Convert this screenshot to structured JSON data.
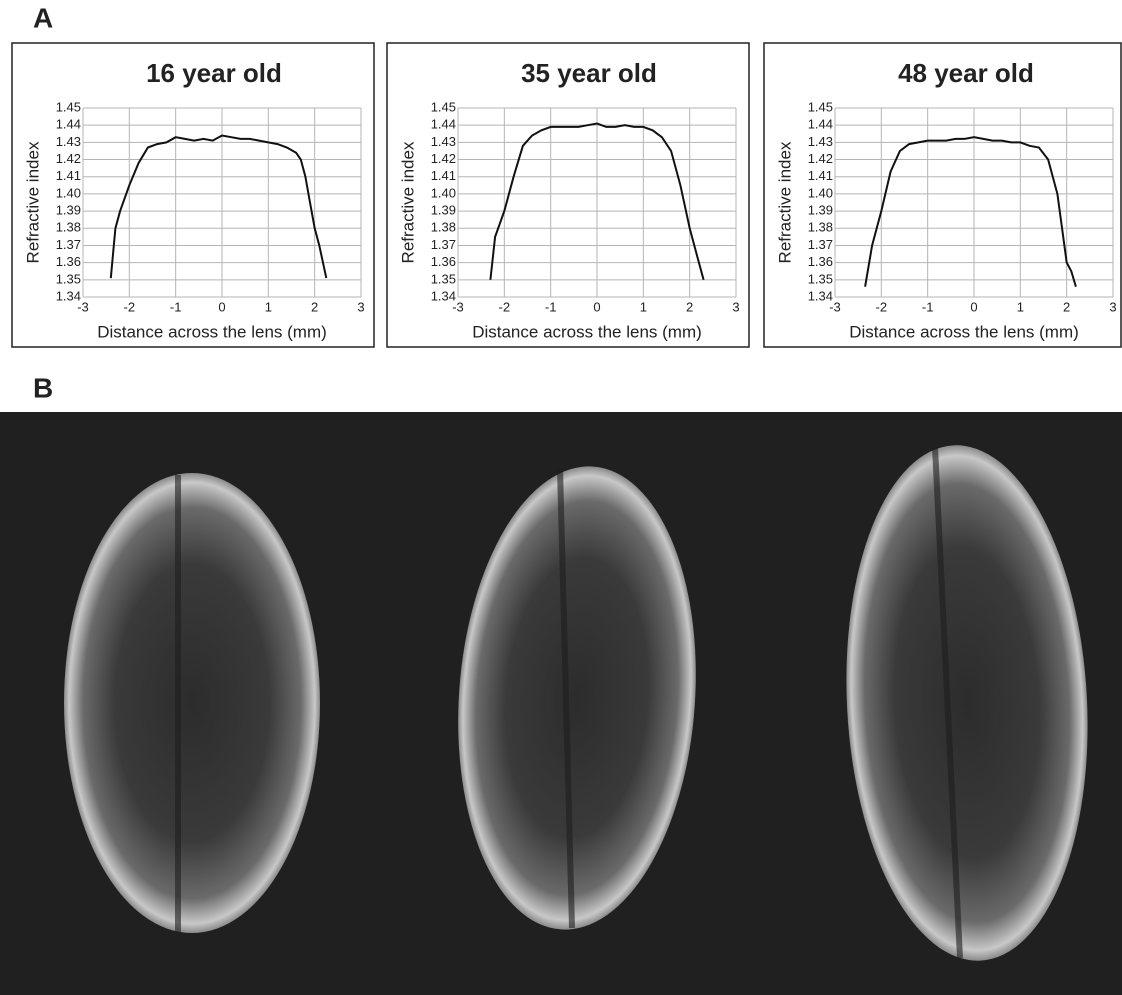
{
  "panel_labels": [
    "A",
    "B"
  ],
  "chart_data": [
    {
      "type": "line",
      "title": "16 year old",
      "x_label": "Distance across the lens (mm)",
      "y_label": "Refractive index",
      "x": [
        -2.4,
        -2.3,
        -2.2,
        -2.0,
        -1.8,
        -1.6,
        -1.4,
        -1.2,
        -1.0,
        -0.8,
        -0.6,
        -0.4,
        -0.2,
        0,
        0.2,
        0.4,
        0.6,
        0.8,
        1.0,
        1.2,
        1.4,
        1.6,
        1.7,
        1.8,
        1.9,
        2.0,
        2.1,
        2.25
      ],
      "values": [
        1.351,
        1.38,
        1.39,
        1.405,
        1.418,
        1.427,
        1.429,
        1.43,
        1.433,
        1.432,
        1.431,
        1.432,
        1.431,
        1.434,
        1.433,
        1.432,
        1.432,
        1.431,
        1.43,
        1.429,
        1.427,
        1.424,
        1.42,
        1.41,
        1.395,
        1.38,
        1.37,
        1.351
      ],
      "color": "#111111",
      "xlim": [
        -3,
        3
      ],
      "ylim": [
        1.34,
        1.45
      ],
      "xticks": [
        -3,
        -2,
        -1,
        0,
        1,
        2,
        3
      ],
      "yticks": [
        1.34,
        1.35,
        1.36,
        1.37,
        1.38,
        1.39,
        {
          "value": 1.4,
          "label": "1.40"
        },
        1.41,
        1.42,
        1.43,
        1.44,
        1.45
      ],
      "grid": true
    },
    {
      "type": "line",
      "title": "35 year old",
      "x_label": "Distance across the lens (mm)",
      "y_label": "Refractive index",
      "x": [
        -2.3,
        -2.2,
        -2.0,
        -1.8,
        -1.6,
        -1.4,
        -1.2,
        -1.0,
        -0.8,
        -0.6,
        -0.4,
        -0.2,
        0,
        0.2,
        0.4,
        0.6,
        0.8,
        1.0,
        1.2,
        1.4,
        1.6,
        1.8,
        2.0,
        2.2,
        2.3
      ],
      "values": [
        1.35,
        1.375,
        1.39,
        1.41,
        1.428,
        1.434,
        1.437,
        1.439,
        1.439,
        1.439,
        1.439,
        1.44,
        1.441,
        1.439,
        1.439,
        1.44,
        1.439,
        1.439,
        1.437,
        1.433,
        1.425,
        1.405,
        1.38,
        1.36,
        1.35
      ],
      "color": "#111111",
      "xlim": [
        -3,
        3
      ],
      "ylim": [
        1.34,
        1.45
      ],
      "xticks": [
        -3,
        -2,
        -1,
        0,
        1,
        2,
        3
      ],
      "yticks": [
        1.34,
        1.35,
        1.36,
        1.37,
        1.38,
        1.39,
        {
          "value": 1.4,
          "label": "1.40"
        },
        1.41,
        1.42,
        1.43,
        1.44,
        1.45
      ],
      "grid": true
    },
    {
      "type": "line",
      "title": "48 year old",
      "x_label": "Distance across the lens (mm)",
      "y_label": "Refractive index",
      "x": [
        -2.35,
        -2.2,
        -2.0,
        -1.8,
        -1.6,
        -1.4,
        -1.2,
        -1.0,
        -0.6,
        -0.4,
        -0.2,
        0,
        0.2,
        0.4,
        0.6,
        0.8,
        1.0,
        1.2,
        1.4,
        1.6,
        1.8,
        2.0,
        2.1,
        2.2
      ],
      "values": [
        1.346,
        1.37,
        1.39,
        1.413,
        1.425,
        1.429,
        1.43,
        1.431,
        1.431,
        1.432,
        1.432,
        1.433,
        1.432,
        1.431,
        1.431,
        1.43,
        1.43,
        1.428,
        1.427,
        1.42,
        1.4,
        1.36,
        1.355,
        1.346
      ],
      "color": "#111111",
      "xlim": [
        -3,
        3
      ],
      "ylim": [
        1.34,
        1.45
      ],
      "xticks": [
        -3,
        -2,
        -1,
        0,
        1,
        2,
        3
      ],
      "yticks": [
        1.34,
        1.35,
        1.36,
        1.37,
        1.38,
        1.39,
        {
          "value": 1.4,
          "label": "1.40"
        },
        1.41,
        1.42,
        1.43,
        1.44,
        1.45
      ],
      "grid": true
    }
  ]
}
